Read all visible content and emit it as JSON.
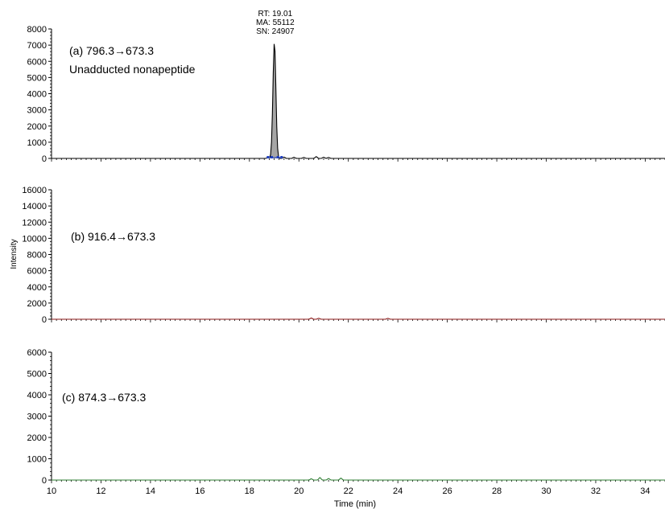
{
  "chart_data": [
    {
      "type": "line",
      "panel_label": "(a) 796.3→673.3",
      "panel_sublabel": "Unadducted nonapeptide",
      "ylim": [
        0,
        8000
      ],
      "yticks": [
        0,
        1000,
        2000,
        3000,
        4000,
        5000,
        6000,
        7000,
        8000
      ],
      "xlim": [
        10,
        34.8
      ],
      "line_color": "#000000",
      "fill_color": "#a6a6a6",
      "peak": {
        "rt": 19.01,
        "height": 7200,
        "width_min": 0.13
      },
      "peak_annotation": [
        "RT: 19.01",
        "MA: 55112",
        "SN: 24907"
      ],
      "noise": [
        {
          "x": 18.75,
          "y": 60
        },
        {
          "x": 19.4,
          "y": 80
        },
        {
          "x": 19.8,
          "y": 70
        },
        {
          "x": 20.2,
          "y": 60
        },
        {
          "x": 20.7,
          "y": 110
        },
        {
          "x": 21.0,
          "y": 70
        },
        {
          "x": 21.2,
          "y": 60
        }
      ],
      "baseline_markers": [
        18.75,
        18.9,
        19.15,
        19.3
      ]
    },
    {
      "type": "line",
      "panel_label": "(b) 916.4→673.3",
      "ylim": [
        0,
        16000
      ],
      "yticks": [
        0,
        2000,
        4000,
        6000,
        8000,
        10000,
        12000,
        14000,
        16000
      ],
      "xlim": [
        10,
        34.8
      ],
      "line_color": "#8b1a1a",
      "noise": [
        {
          "x": 20.5,
          "y": 150
        },
        {
          "x": 20.8,
          "y": 120
        },
        {
          "x": 23.6,
          "y": 110
        }
      ]
    },
    {
      "type": "line",
      "panel_label": "(c) 874.3→673.3",
      "ylim": [
        0,
        6000
      ],
      "yticks": [
        0,
        1000,
        2000,
        3000,
        4000,
        5000,
        6000
      ],
      "xlim": [
        10,
        34.8
      ],
      "line_color": "#2e7d32",
      "noise": [
        {
          "x": 20.5,
          "y": 60
        },
        {
          "x": 20.85,
          "y": 120
        },
        {
          "x": 21.2,
          "y": 70
        },
        {
          "x": 21.7,
          "y": 90
        }
      ]
    }
  ],
  "shared": {
    "ylabel": "Intensity",
    "xlabel": "Time (min)",
    "xticks": [
      10,
      12,
      14,
      16,
      18,
      20,
      22,
      24,
      26,
      28,
      30,
      32,
      34
    ]
  }
}
